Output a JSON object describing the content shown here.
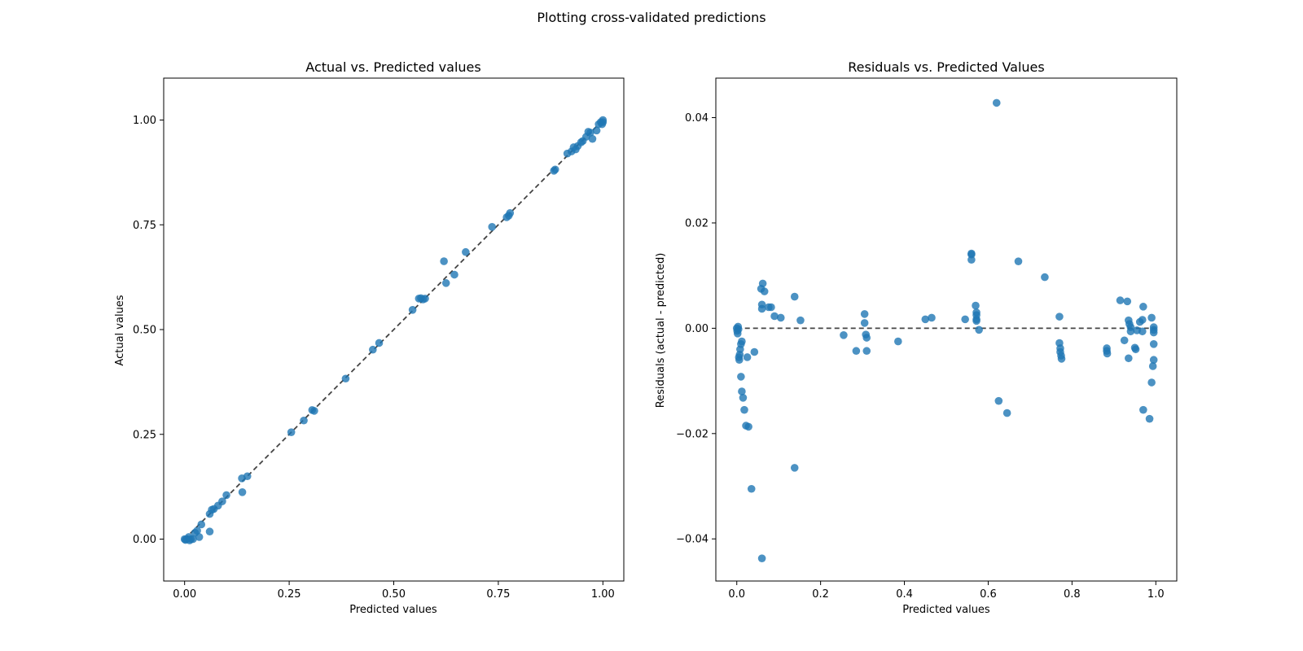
{
  "suptitle": "Plotting cross-validated predictions",
  "chart_data": [
    {
      "type": "scatter",
      "title": "Actual vs. Predicted values",
      "xlabel": "Predicted values",
      "ylabel": "Actual values",
      "xlim": [
        -0.05,
        1.05
      ],
      "ylim": [
        -0.1,
        1.1
      ],
      "xticks": [
        0.0,
        0.25,
        0.5,
        0.75,
        1.0
      ],
      "xtick_labels": [
        "0.00",
        "0.25",
        "0.50",
        "0.75",
        "1.00"
      ],
      "yticks": [
        0.0,
        0.25,
        0.5,
        0.75,
        1.0
      ],
      "ytick_labels": [
        "0.00",
        "0.25",
        "0.50",
        "0.75",
        "1.00"
      ],
      "point_color": "#1f77b4",
      "reference_line": {
        "x": [
          0.0,
          1.0
        ],
        "y": [
          0.0,
          1.0
        ],
        "style": "dashed",
        "color": "#444444"
      },
      "points": [
        [
          0.0,
          0.0
        ],
        [
          0.002,
          -0.002
        ],
        [
          0.005,
          0.0
        ],
        [
          0.01,
          0.005
        ],
        [
          0.012,
          -0.003
        ],
        [
          0.015,
          0.0
        ],
        [
          0.02,
          0.0
        ],
        [
          0.025,
          0.015
        ],
        [
          0.03,
          0.02
        ],
        [
          0.035,
          0.005
        ],
        [
          0.04,
          0.035
        ],
        [
          0.06,
          0.018
        ],
        [
          0.06,
          0.06
        ],
        [
          0.065,
          0.07
        ],
        [
          0.07,
          0.072
        ],
        [
          0.08,
          0.08
        ],
        [
          0.09,
          0.09
        ],
        [
          0.1,
          0.105
        ],
        [
          0.137,
          0.145
        ],
        [
          0.138,
          0.112
        ],
        [
          0.15,
          0.15
        ],
        [
          0.255,
          0.255
        ],
        [
          0.285,
          0.283
        ],
        [
          0.305,
          0.308
        ],
        [
          0.31,
          0.306
        ],
        [
          0.385,
          0.383
        ],
        [
          0.45,
          0.452
        ],
        [
          0.465,
          0.468
        ],
        [
          0.545,
          0.547
        ],
        [
          0.56,
          0.574
        ],
        [
          0.565,
          0.575
        ],
        [
          0.57,
          0.572
        ],
        [
          0.575,
          0.574
        ],
        [
          0.62,
          0.663
        ],
        [
          0.625,
          0.611
        ],
        [
          0.645,
          0.631
        ],
        [
          0.672,
          0.685
        ],
        [
          0.735,
          0.745
        ],
        [
          0.77,
          0.768
        ],
        [
          0.775,
          0.772
        ],
        [
          0.778,
          0.778
        ],
        [
          0.883,
          0.879
        ],
        [
          0.886,
          0.882
        ],
        [
          0.915,
          0.92
        ],
        [
          0.925,
          0.925
        ],
        [
          0.93,
          0.935
        ],
        [
          0.935,
          0.93
        ],
        [
          0.94,
          0.938
        ],
        [
          0.948,
          0.947
        ],
        [
          0.952,
          0.95
        ],
        [
          0.96,
          0.96
        ],
        [
          0.965,
          0.972
        ],
        [
          0.97,
          0.97
        ],
        [
          0.975,
          0.955
        ],
        [
          0.985,
          0.975
        ],
        [
          0.99,
          0.99
        ],
        [
          0.995,
          0.995
        ],
        [
          0.998,
          0.99
        ],
        [
          1.0,
          1.0
        ],
        [
          1.0,
          0.995
        ]
      ]
    },
    {
      "type": "scatter",
      "title": "Residuals vs. Predicted Values",
      "xlabel": "Predicted values",
      "ylabel": "Residuals (actual - predicted)",
      "xlim": [
        -0.05,
        1.05
      ],
      "ylim": [
        -0.048,
        0.0475
      ],
      "xticks": [
        0.0,
        0.2,
        0.4,
        0.6,
        0.8,
        1.0
      ],
      "xtick_labels": [
        "0.0",
        "0.2",
        "0.4",
        "0.6",
        "0.8",
        "1.0"
      ],
      "yticks": [
        -0.04,
        -0.02,
        0.0,
        0.02,
        0.04
      ],
      "ytick_labels": [
        "−0.04",
        "−0.02",
        "0.00",
        "0.02",
        "0.04"
      ],
      "point_color": "#1f77b4",
      "reference_line": {
        "x": [
          0.0,
          1.0
        ],
        "y": [
          0.0,
          0.0
        ],
        "style": "dashed",
        "color": "#444444"
      },
      "points": [
        [
          0.0,
          0.0
        ],
        [
          0.001,
          -0.0005
        ],
        [
          0.002,
          -0.001
        ],
        [
          0.003,
          0.0003
        ],
        [
          0.004,
          -0.0002
        ],
        [
          0.005,
          -0.0055
        ],
        [
          0.006,
          -0.006
        ],
        [
          0.007,
          -0.005
        ],
        [
          0.008,
          -0.004
        ],
        [
          0.01,
          -0.003
        ],
        [
          0.012,
          -0.0025
        ],
        [
          0.01,
          -0.0092
        ],
        [
          0.012,
          -0.012
        ],
        [
          0.015,
          -0.0132
        ],
        [
          0.018,
          -0.0155
        ],
        [
          0.022,
          -0.0185
        ],
        [
          0.028,
          -0.0187
        ],
        [
          0.025,
          -0.0055
        ],
        [
          0.035,
          -0.0305
        ],
        [
          0.042,
          -0.0045
        ],
        [
          0.058,
          0.0075
        ],
        [
          0.06,
          0.0045
        ],
        [
          0.062,
          0.0085
        ],
        [
          0.066,
          0.007
        ],
        [
          0.06,
          0.0037
        ],
        [
          0.06,
          -0.0437
        ],
        [
          0.076,
          0.004
        ],
        [
          0.082,
          0.004
        ],
        [
          0.09,
          0.0023
        ],
        [
          0.105,
          0.002
        ],
        [
          0.138,
          0.006
        ],
        [
          0.138,
          -0.0265
        ],
        [
          0.152,
          0.0015
        ],
        [
          0.255,
          -0.0013
        ],
        [
          0.285,
          -0.0043
        ],
        [
          0.305,
          0.0027
        ],
        [
          0.305,
          0.001
        ],
        [
          0.308,
          -0.0012
        ],
        [
          0.31,
          -0.0018
        ],
        [
          0.31,
          -0.0043
        ],
        [
          0.385,
          -0.0025
        ],
        [
          0.45,
          0.0017
        ],
        [
          0.465,
          0.002
        ],
        [
          0.545,
          0.0017
        ],
        [
          0.56,
          0.0142
        ],
        [
          0.56,
          0.014
        ],
        [
          0.56,
          0.013
        ],
        [
          0.57,
          0.0043
        ],
        [
          0.572,
          0.003
        ],
        [
          0.572,
          0.0025
        ],
        [
          0.572,
          0.0017
        ],
        [
          0.572,
          0.0014
        ],
        [
          0.578,
          -0.0003
        ],
        [
          0.62,
          0.0428
        ],
        [
          0.625,
          -0.0138
        ],
        [
          0.645,
          -0.0161
        ],
        [
          0.672,
          0.0127
        ],
        [
          0.735,
          0.0097
        ],
        [
          0.77,
          0.0022
        ],
        [
          0.77,
          -0.0028
        ],
        [
          0.772,
          -0.0038
        ],
        [
          0.772,
          -0.0045
        ],
        [
          0.774,
          -0.0052
        ],
        [
          0.775,
          -0.0058
        ],
        [
          0.883,
          -0.0038
        ],
        [
          0.883,
          -0.0043
        ],
        [
          0.884,
          -0.0048
        ],
        [
          0.915,
          0.0053
        ],
        [
          0.925,
          -0.0023
        ],
        [
          0.932,
          0.0051
        ],
        [
          0.935,
          -0.0057
        ],
        [
          0.935,
          0.0015
        ],
        [
          0.937,
          0.0008
        ],
        [
          0.94,
          0.0002
        ],
        [
          0.94,
          -0.0006
        ],
        [
          0.95,
          -0.0037
        ],
        [
          0.952,
          -0.004
        ],
        [
          0.955,
          -0.0004
        ],
        [
          0.962,
          0.0012
        ],
        [
          0.968,
          0.0016
        ],
        [
          0.968,
          -0.0006
        ],
        [
          0.97,
          0.0041
        ],
        [
          0.97,
          -0.0155
        ],
        [
          0.985,
          -0.0172
        ],
        [
          0.99,
          0.002
        ],
        [
          0.99,
          -0.0103
        ],
        [
          0.995,
          0.0002
        ],
        [
          0.995,
          -0.0003
        ],
        [
          0.995,
          -0.0008
        ],
        [
          0.995,
          -0.003
        ],
        [
          0.995,
          -0.006
        ],
        [
          0.993,
          -0.0072
        ]
      ]
    }
  ]
}
